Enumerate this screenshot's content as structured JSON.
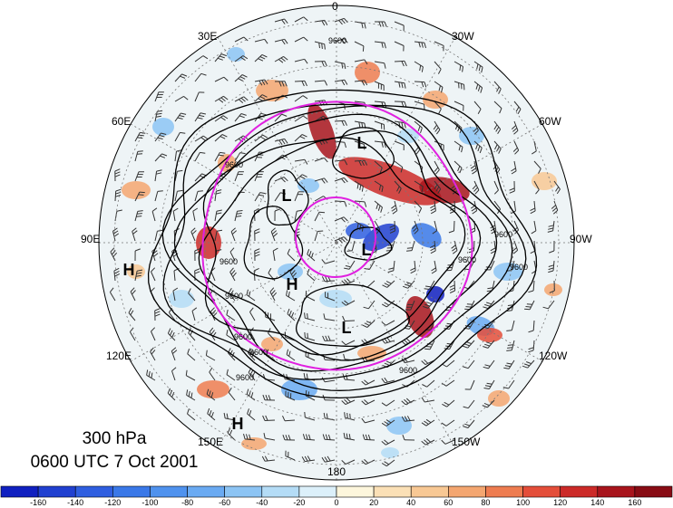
{
  "map": {
    "level": "300 hPa",
    "valid_time": "0600 UTC 7 Oct 2001",
    "longitude_labels": {
      "lon_0": "0",
      "lon_30w": "30W",
      "lon_60w": "60W",
      "lon_90w": "90W",
      "lon_120w": "120W",
      "lon_150w": "150W",
      "lon_180": "180",
      "lon_150e": "150E",
      "lon_120e": "120E",
      "lon_90e": "90E",
      "lon_60e": "60E",
      "lon_30e": "30E"
    },
    "pressure_centers": [
      "L",
      "L",
      "L",
      "L",
      "H",
      "H",
      "H"
    ],
    "contour_labels": [
      "9600",
      "9600",
      "9600",
      "9600",
      "9600",
      "9600",
      "9600",
      "9600",
      "9600",
      "9600",
      "9600"
    ],
    "colors": {
      "jet_circle": "#e020e0",
      "contour": "#000000"
    }
  },
  "colorbar": {
    "ticks": [
      "-160",
      "-140",
      "-120",
      "-100",
      "-80",
      "-60",
      "-40",
      "-20",
      "0",
      "20",
      "40",
      "60",
      "80",
      "100",
      "120",
      "140",
      "160"
    ],
    "colors": [
      "#1020c0",
      "#2040d0",
      "#2f5ee0",
      "#3a78e8",
      "#4f92ee",
      "#6aaaf2",
      "#8cc4f4",
      "#b4dcf6",
      "#dcf0fa",
      "#fdf6dc",
      "#fbe0b6",
      "#f8c894",
      "#f4a670",
      "#ee7c50",
      "#e44e3a",
      "#cc2a28",
      "#a8141c",
      "#880c14"
    ]
  }
}
